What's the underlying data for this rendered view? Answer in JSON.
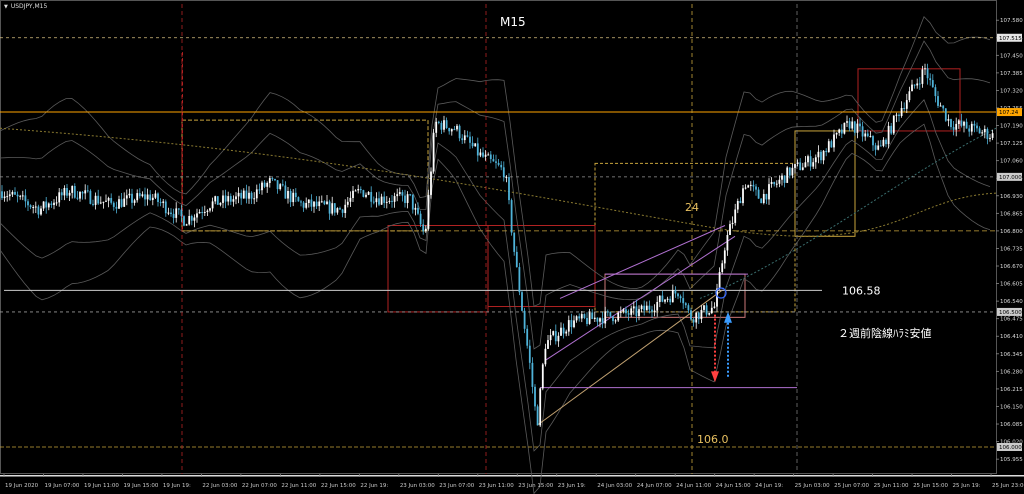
{
  "symbol": "USDJPY,M15",
  "timeframe_label": "M15",
  "colors": {
    "background": "#000000",
    "candle_up": "#ffffff",
    "candle_down": "#4fb3d9",
    "price_line": "#ffa500",
    "hline": "#cccccc",
    "box_yellow": "#c8a43c",
    "box_red": "#b22222",
    "channel": "#b070d0",
    "label_text": "#ffffff",
    "label_yellow": "#e8c060"
  },
  "chart_data": {
    "type": "candlestick",
    "title": "M15",
    "ylim": [
      105.9,
      107.64
    ],
    "y_ticks": [
      "107.580",
      "107.515",
      "107.450",
      "107.385",
      "107.320",
      "107.255",
      "107.190",
      "107.125",
      "107.060",
      "106.995",
      "106.930",
      "106.865",
      "106.800",
      "106.735",
      "106.670",
      "106.605",
      "106.540",
      "106.475",
      "106.410",
      "106.345",
      "106.280",
      "106.215",
      "106.150",
      "106.085",
      "106.020",
      "105.955"
    ],
    "y_tick_values": [
      107.58,
      107.515,
      107.45,
      107.385,
      107.32,
      107.255,
      107.19,
      107.125,
      107.06,
      106.995,
      106.93,
      106.865,
      106.8,
      106.735,
      106.67,
      106.605,
      106.54,
      106.475,
      106.41,
      106.345,
      106.28,
      106.215,
      106.15,
      106.085,
      106.02,
      105.955
    ],
    "x_ticks": [
      "19 Jun 2020",
      "19 Jun 07:00",
      "19 Jun 11:00",
      "19 Jun 15:00",
      "19 Jun 19:",
      "22 Jun 03:00",
      "22 Jun 07:00",
      "22 Jun 11:00",
      "22 Jun 15:00",
      "22 Jun 19:",
      "23 Jun 03:00",
      "23 Jun 07:00",
      "23 Jun 11:00",
      "23 Jun 15:00",
      "23 Jun 19:",
      "24 Jun 03:00",
      "24 Jun 07:00",
      "24 Jun 11:00",
      "24 Jun 15:00",
      "24 Jun 19:",
      "25 Jun 03:00",
      "25 Jun 07:00",
      "25 Jun 11:00",
      "25 Jun 15:00",
      "25 Jun 19:",
      "25 Jun 23:00"
    ],
    "price_tags": [
      {
        "text": "107.515",
        "value": 107.515,
        "color": "#e6e6e6",
        "textcolor": "#000000"
      },
      {
        "text": "107.24",
        "value": 107.24,
        "color": "#ffa500",
        "textcolor": "#000000"
      },
      {
        "text": "107.000",
        "value": 107.0,
        "color": "#cccccc",
        "textcolor": "#000000"
      },
      {
        "text": "106.500",
        "value": 106.5,
        "color": "#cccccc",
        "textcolor": "#000000"
      },
      {
        "text": "106.000",
        "value": 106.0,
        "color": "#cccccc",
        "textcolor": "#000000"
      }
    ],
    "annotations": [
      {
        "text": "106.58",
        "value": 106.58,
        "kind": "hline"
      },
      {
        "text": "２週前陰線ﾊﾗﾐ安値",
        "kind": "note"
      },
      {
        "text": "24",
        "kind": "yellow"
      },
      {
        "text": "106.0",
        "kind": "yellow"
      }
    ],
    "price_waypoints": [
      [
        0,
        106.95
      ],
      [
        40,
        106.88
      ],
      [
        70,
        106.95
      ],
      [
        110,
        106.9
      ],
      [
        150,
        106.93
      ],
      [
        185,
        106.84
      ],
      [
        210,
        106.9
      ],
      [
        250,
        106.93
      ],
      [
        270,
        106.98
      ],
      [
        300,
        106.9
      ],
      [
        340,
        106.88
      ],
      [
        360,
        106.95
      ],
      [
        380,
        106.92
      ],
      [
        410,
        106.92
      ],
      [
        425,
        106.78
      ],
      [
        435,
        107.2
      ],
      [
        455,
        107.18
      ],
      [
        480,
        107.08
      ],
      [
        505,
        107.02
      ],
      [
        515,
        106.7
      ],
      [
        530,
        106.3
      ],
      [
        537,
        106.08
      ],
      [
        545,
        106.38
      ],
      [
        570,
        106.46
      ],
      [
        600,
        106.48
      ],
      [
        640,
        106.5
      ],
      [
        680,
        106.58
      ],
      [
        690,
        106.48
      ],
      [
        715,
        106.52
      ],
      [
        725,
        106.75
      ],
      [
        745,
        106.98
      ],
      [
        760,
        106.92
      ],
      [
        790,
        107.02
      ],
      [
        820,
        107.08
      ],
      [
        850,
        107.2
      ],
      [
        880,
        107.1
      ],
      [
        900,
        107.25
      ],
      [
        925,
        107.4
      ],
      [
        935,
        107.3
      ],
      [
        950,
        107.2
      ],
      [
        970,
        107.18
      ],
      [
        995,
        107.15
      ]
    ]
  }
}
